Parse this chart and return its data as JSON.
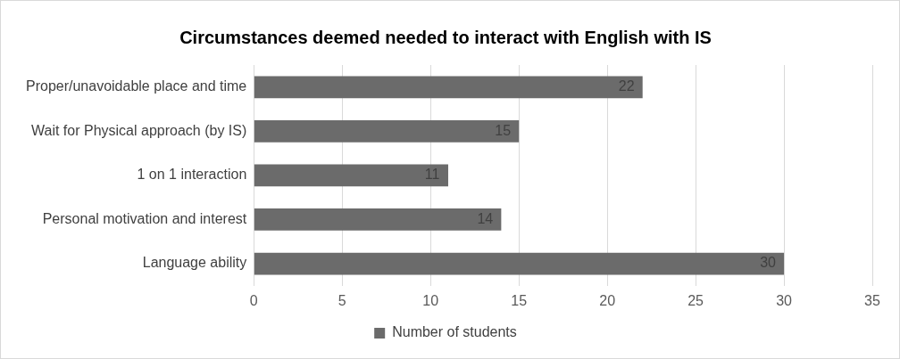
{
  "chart_data": {
    "type": "bar",
    "orientation": "horizontal",
    "title": "Circumstances deemed needed to interact with English with IS",
    "categories": [
      "Proper/unavoidable place and time",
      "Wait for Physical approach (by IS)",
      "1 on 1 interaction",
      "Personal motivation and interest",
      "Language ability"
    ],
    "series": [
      {
        "name": "Number of students",
        "color": "#6b6b6b",
        "values": [
          22,
          15,
          11,
          14,
          30
        ]
      }
    ],
    "xlim": [
      0,
      35
    ],
    "xticks": [
      0,
      5,
      10,
      15,
      20,
      25,
      30,
      35
    ],
    "grid": "x",
    "legend": "bottom",
    "data_labels": true
  }
}
